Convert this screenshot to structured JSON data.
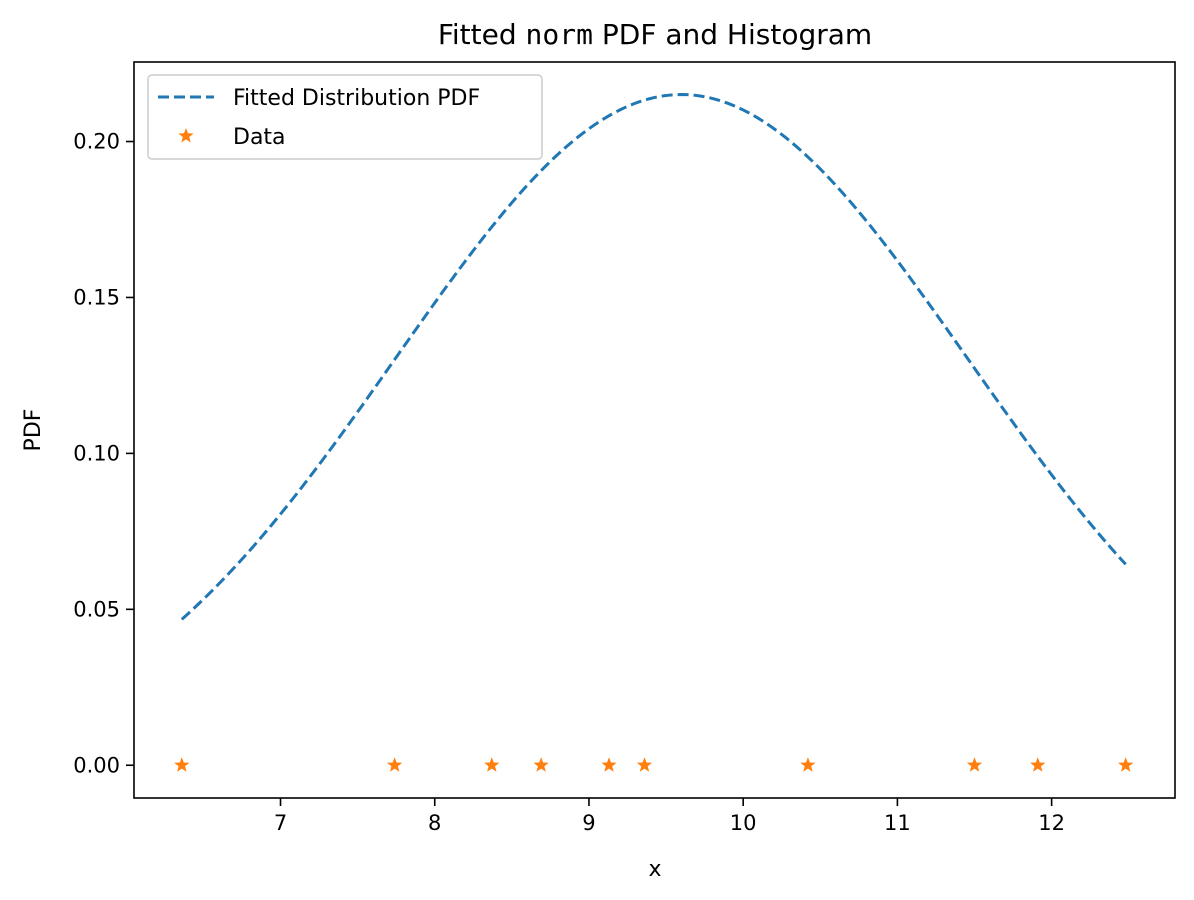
{
  "chart_data": {
    "type": "line",
    "title_parts": [
      "Fitted ",
      "norm",
      " PDF and Histogram"
    ],
    "xlabel": "x",
    "ylabel": "PDF",
    "xlim": [
      6.05,
      12.8
    ],
    "ylim": [
      -0.0105,
      0.2255
    ],
    "xticks": [
      7,
      8,
      9,
      10,
      11,
      12
    ],
    "xtick_labels": [
      "7",
      "8",
      "9",
      "10",
      "11",
      "12"
    ],
    "yticks": [
      0.0,
      0.05,
      0.1,
      0.15,
      0.2
    ],
    "ytick_labels": [
      "0.00",
      "0.05",
      "0.10",
      "0.15",
      "0.20"
    ],
    "grid": false,
    "legend_position": "upper-left",
    "series": [
      {
        "name": "Fitted Distribution PDF",
        "style": "dashed-line",
        "color": "#1f77b4",
        "distribution": "norm",
        "mean": 9.6,
        "std": 1.855,
        "x_range": [
          6.36,
          12.48
        ]
      },
      {
        "name": "Data",
        "style": "star-markers",
        "color": "#ff7f0e",
        "x": [
          6.36,
          7.74,
          8.37,
          8.69,
          9.13,
          9.36,
          10.42,
          11.5,
          11.91,
          12.48
        ],
        "y": [
          0,
          0,
          0,
          0,
          0,
          0,
          0,
          0,
          0,
          0
        ]
      }
    ]
  }
}
